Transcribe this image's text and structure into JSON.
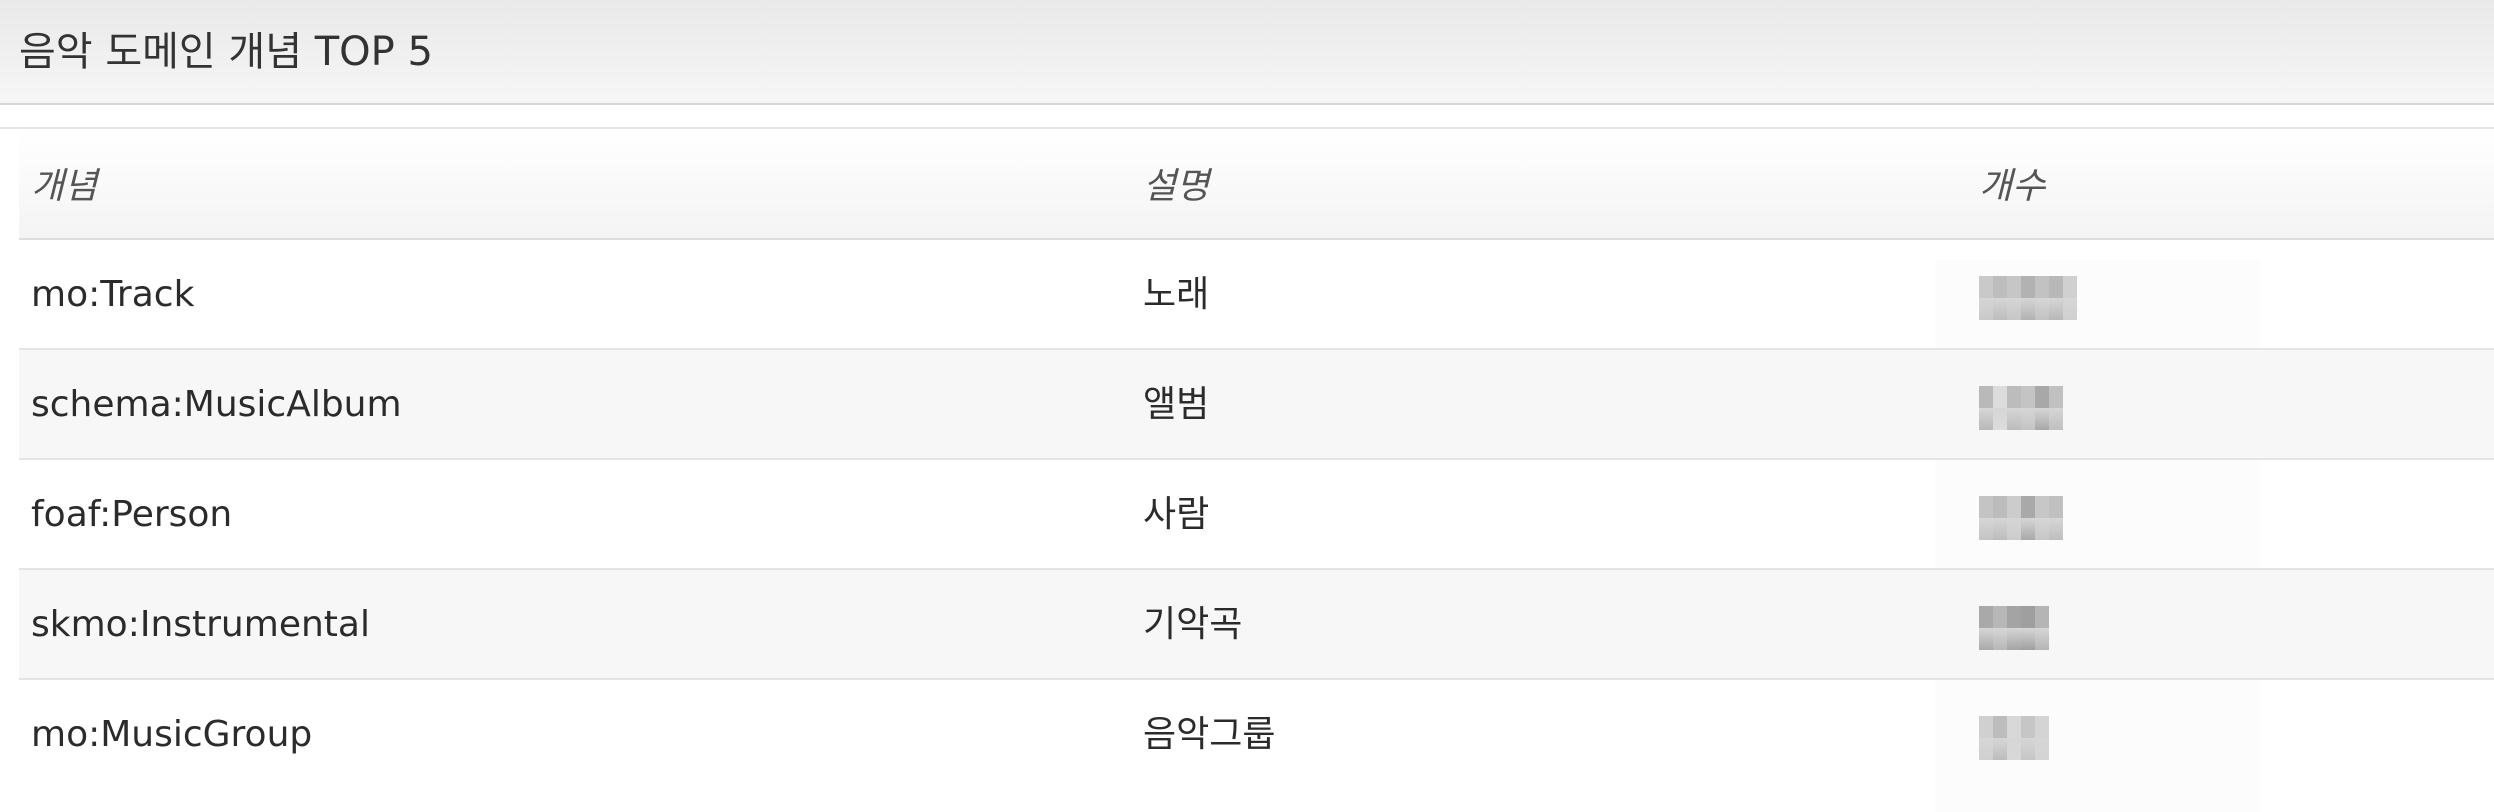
{
  "header": {
    "title": "음악 도메인 개념 TOP 5"
  },
  "table": {
    "columns": [
      "개념",
      "설명",
      "개수"
    ],
    "rows": [
      {
        "concept": "mo:Track",
        "description": "노래",
        "count_masked": "redacted"
      },
      {
        "concept": "schema:MusicAlbum",
        "description": "앨범",
        "count_masked": "redacted"
      },
      {
        "concept": "foaf:Person",
        "description": "사람",
        "count_masked": "redacted"
      },
      {
        "concept": "skmo:Instrumental",
        "description": "기악곡",
        "count_masked": "redacted"
      },
      {
        "concept": "mo:MusicGroup",
        "description": "음악그룹",
        "count_masked": "redacted"
      }
    ]
  },
  "colors": {
    "header_bg": "#eeeeee",
    "row_alt_bg": "#f7f7f7",
    "text": "#2b2b2b",
    "divider": "#e4e4e4"
  }
}
